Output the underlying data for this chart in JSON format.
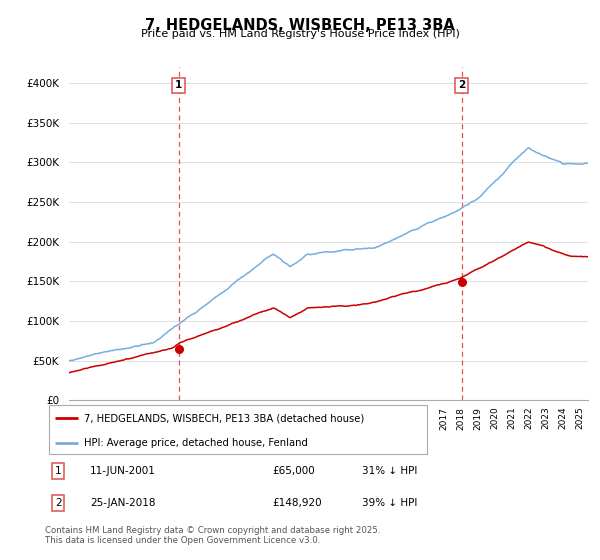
{
  "title": "7, HEDGELANDS, WISBECH, PE13 3BA",
  "subtitle": "Price paid vs. HM Land Registry's House Price Index (HPI)",
  "ylim": [
    0,
    420000
  ],
  "yticks": [
    0,
    50000,
    100000,
    150000,
    200000,
    250000,
    300000,
    350000,
    400000
  ],
  "sale1": {
    "date_num": 2001.44,
    "price": 65000,
    "label": "1",
    "text": "11-JUN-2001",
    "price_str": "£65,000",
    "hpi_str": "31% ↓ HPI"
  },
  "sale2": {
    "date_num": 2018.07,
    "price": 148920,
    "label": "2",
    "text": "25-JAN-2018",
    "price_str": "£148,920",
    "hpi_str": "39% ↓ HPI"
  },
  "legend_label_red": "7, HEDGELANDS, WISBECH, PE13 3BA (detached house)",
  "legend_label_blue": "HPI: Average price, detached house, Fenland",
  "footer": "Contains HM Land Registry data © Crown copyright and database right 2025.\nThis data is licensed under the Open Government Licence v3.0.",
  "red_color": "#cc0000",
  "blue_color": "#7aaddc",
  "vline_color": "#e05050",
  "grid_color": "#e0e0e0"
}
